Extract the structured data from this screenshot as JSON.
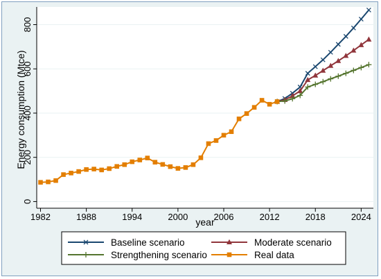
{
  "chart_data": {
    "type": "line",
    "xlabel": "year",
    "ylabel": "Energy consumption (Mtce)",
    "xlim": [
      1981.5,
      2025.6
    ],
    "ylim": [
      -30,
      880
    ],
    "x_ticks": [
      1982,
      1988,
      1994,
      2000,
      2006,
      2012,
      2018,
      2024
    ],
    "y_ticks": [
      0,
      200,
      400,
      600,
      800
    ],
    "grid": "horizontal",
    "legend_position": "bottom",
    "series": [
      {
        "name": "Baseline scenario",
        "color": "#1a476f",
        "marker": "x",
        "x": [
          2013,
          2014,
          2015,
          2016,
          2017,
          2018,
          2019,
          2020,
          2021,
          2022,
          2023,
          2024,
          2025
        ],
        "y": [
          452,
          466,
          490,
          518,
          580,
          610,
          641,
          675,
          711,
          747,
          785,
          825,
          866
        ]
      },
      {
        "name": "Moderate scenario",
        "color": "#90353b",
        "marker": "triangle",
        "x": [
          2013,
          2014,
          2015,
          2016,
          2017,
          2018,
          2019,
          2020,
          2021,
          2022,
          2023,
          2024,
          2025
        ],
        "y": [
          452,
          460,
          478,
          500,
          550,
          570,
          592,
          614,
          636,
          659,
          683,
          708,
          733
        ]
      },
      {
        "name": "Strengthening scenario",
        "color": "#55752f",
        "marker": "plus",
        "x": [
          2013,
          2014,
          2015,
          2016,
          2017,
          2018,
          2019,
          2020,
          2021,
          2022,
          2023,
          2024,
          2025
        ],
        "y": [
          452,
          455,
          465,
          480,
          518,
          530,
          542,
          555,
          567,
          580,
          593,
          606,
          619
        ]
      },
      {
        "name": "Real data",
        "color": "#e37e00",
        "marker": "square",
        "x": [
          1982,
          1983,
          1984,
          1985,
          1986,
          1987,
          1988,
          1989,
          1990,
          1991,
          1992,
          1993,
          1994,
          1995,
          1996,
          1997,
          1998,
          1999,
          2000,
          2001,
          2002,
          2003,
          2004,
          2005,
          2006,
          2007,
          2008,
          2009,
          2010,
          2011,
          2012,
          2013
        ],
        "y": [
          87,
          89,
          95,
          122,
          129,
          136,
          145,
          147,
          143,
          149,
          159,
          167,
          180,
          188,
          197,
          178,
          168,
          158,
          150,
          154,
          167,
          198,
          262,
          276,
          300,
          316,
          374,
          398,
          426,
          458,
          440,
          452
        ]
      }
    ]
  }
}
